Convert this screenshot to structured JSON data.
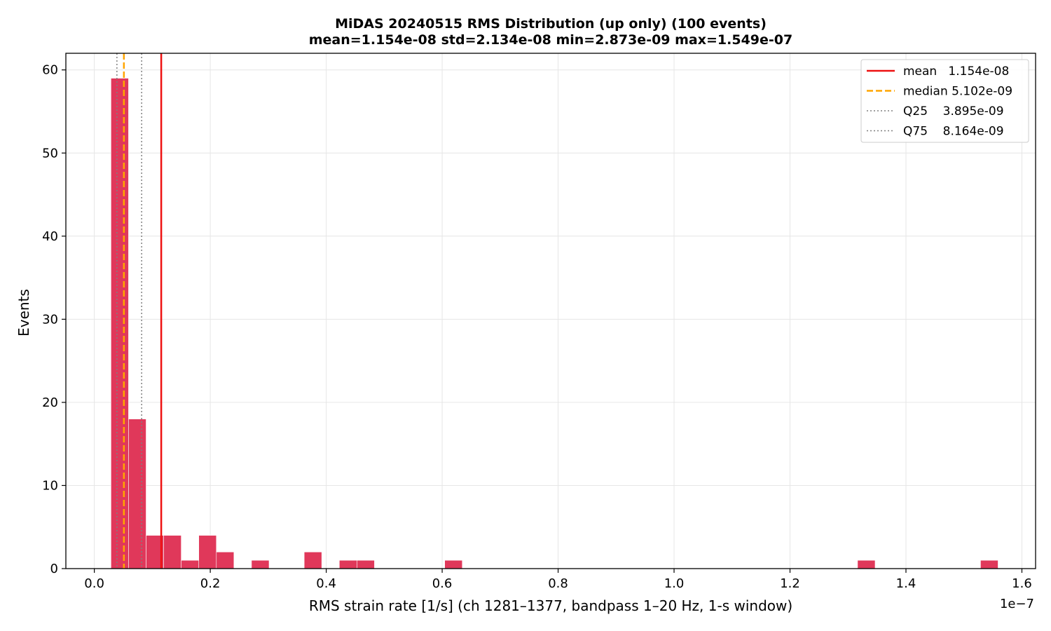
{
  "chart_data": {
    "type": "bar",
    "title": "MiDAS 20240515  RMS Distribution  (up only)  (100 events)",
    "subtitle": "mean=1.154e-08  std=2.134e-08  min=2.873e-09  max=1.549e-07",
    "xlabel": "RMS strain rate [1/s]  (ch 1281–1377, bandpass 1–20 Hz, 1-s window)",
    "ylabel": "Events",
    "x_offset_label": "1e−7",
    "x_scale_factor": 1e-07,
    "xlim": [
      -0.0491,
      1.6236
    ],
    "ylim": [
      0,
      62
    ],
    "grid": true,
    "bar_color": "#e0385a",
    "bins": [
      {
        "x0": 0.0287,
        "x1": 0.059,
        "count": 59
      },
      {
        "x0": 0.059,
        "x1": 0.0893,
        "count": 18
      },
      {
        "x0": 0.0893,
        "x1": 0.1196,
        "count": 4
      },
      {
        "x0": 0.1196,
        "x1": 0.1499,
        "count": 4
      },
      {
        "x0": 0.1499,
        "x1": 0.1802,
        "count": 1
      },
      {
        "x0": 0.1802,
        "x1": 0.2105,
        "count": 4
      },
      {
        "x0": 0.2105,
        "x1": 0.2408,
        "count": 2
      },
      {
        "x0": 0.2711,
        "x1": 0.3014,
        "count": 1
      },
      {
        "x0": 0.362,
        "x1": 0.3923,
        "count": 2
      },
      {
        "x0": 0.4226,
        "x1": 0.4529,
        "count": 1
      },
      {
        "x0": 0.4529,
        "x1": 0.4832,
        "count": 1
      },
      {
        "x0": 0.6044,
        "x1": 0.6347,
        "count": 1
      },
      {
        "x0": 1.3165,
        "x1": 1.3468,
        "count": 1
      },
      {
        "x0": 1.5286,
        "x1": 1.5589,
        "count": 1
      }
    ],
    "x_ticks": [
      {
        "value": 0.0,
        "label": "0.0"
      },
      {
        "value": 0.2,
        "label": "0.2"
      },
      {
        "value": 0.4,
        "label": "0.4"
      },
      {
        "value": 0.6,
        "label": "0.6"
      },
      {
        "value": 0.8,
        "label": "0.8"
      },
      {
        "value": 1.0,
        "label": "1.0"
      },
      {
        "value": 1.2,
        "label": "1.2"
      },
      {
        "value": 1.4,
        "label": "1.4"
      },
      {
        "value": 1.6,
        "label": "1.6"
      }
    ],
    "y_ticks": [
      {
        "value": 0,
        "label": "0"
      },
      {
        "value": 10,
        "label": "10"
      },
      {
        "value": 20,
        "label": "20"
      },
      {
        "value": 30,
        "label": "30"
      },
      {
        "value": 40,
        "label": "40"
      },
      {
        "value": 50,
        "label": "50"
      },
      {
        "value": 60,
        "label": "60"
      }
    ],
    "reference_lines": [
      {
        "name": "mean",
        "value": 0.1154,
        "color": "#ee1111",
        "style": "solid",
        "legend_label": "mean   1.154e-08"
      },
      {
        "name": "median",
        "value": 0.05102,
        "color": "#ffa500",
        "style": "dashed",
        "legend_label": "median 5.102e-09"
      },
      {
        "name": "Q25",
        "value": 0.03895,
        "color": "#808080",
        "style": "dotted",
        "legend_label": "Q25    3.895e-09"
      },
      {
        "name": "Q75",
        "value": 0.08164,
        "color": "#808080",
        "style": "dotted",
        "legend_label": "Q75    8.164e-09"
      }
    ],
    "legend": {
      "placement": "top-right"
    }
  }
}
